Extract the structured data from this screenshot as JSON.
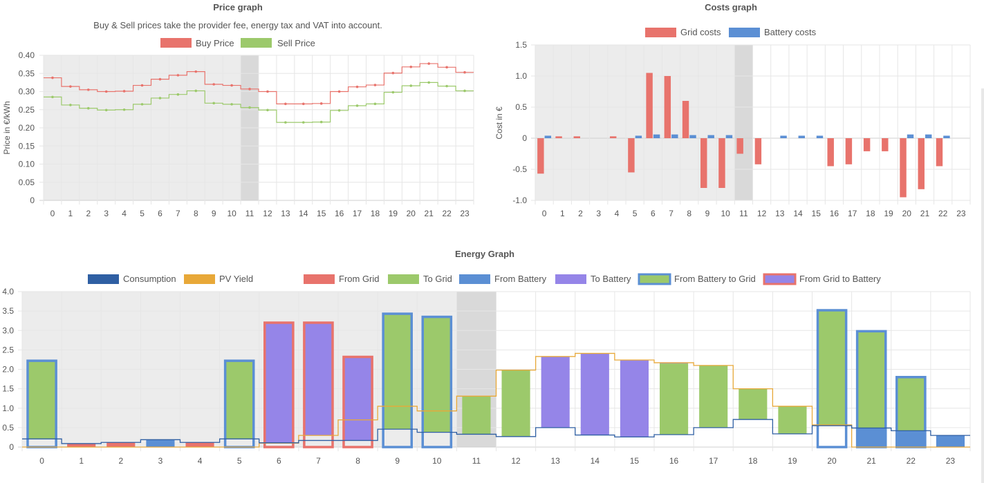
{
  "colors": {
    "buy": "#e8736c",
    "sell": "#9cc96b",
    "grid_cost": "#e8736c",
    "battery_cost": "#5b8fd4",
    "consumption": "#2f5fa3",
    "pv": "#e8a838",
    "from_grid": "#e8736c",
    "to_grid": "#9cc96b",
    "from_battery": "#5b8fd4",
    "to_battery": "#9585e8",
    "past_bg": "#ececec",
    "current_bg": "#d9d9d9"
  },
  "hours": [
    "0",
    "1",
    "2",
    "3",
    "4",
    "5",
    "6",
    "7",
    "8",
    "9",
    "10",
    "11",
    "12",
    "13",
    "14",
    "15",
    "16",
    "17",
    "18",
    "19",
    "20",
    "21",
    "22",
    "23"
  ],
  "current_hour": 11,
  "chart_data": [
    {
      "id": "price",
      "type": "line",
      "title": "Price graph",
      "subtitle": "Buy & Sell prices take the provider fee, energy tax and VAT into account.",
      "ylabel": "Price in €/kWh",
      "ylim": [
        0,
        0.4
      ],
      "yticks": [
        "0.40",
        "0.35",
        "0.30",
        "0.25",
        "0.20",
        "0.15",
        "0.10",
        "0.05",
        "0"
      ],
      "series": [
        {
          "name": "Buy Price",
          "values": [
            0.338,
            0.314,
            0.305,
            0.3,
            0.301,
            0.317,
            0.334,
            0.345,
            0.355,
            0.32,
            0.317,
            0.307,
            0.3,
            0.266,
            0.266,
            0.267,
            0.3,
            0.313,
            0.318,
            0.351,
            0.368,
            0.377,
            0.367,
            0.353
          ]
        },
        {
          "name": "Sell Price",
          "values": [
            0.285,
            0.263,
            0.254,
            0.249,
            0.25,
            0.265,
            0.282,
            0.292,
            0.302,
            0.268,
            0.265,
            0.256,
            0.249,
            0.215,
            0.215,
            0.216,
            0.248,
            0.261,
            0.266,
            0.298,
            0.316,
            0.325,
            0.315,
            0.302
          ]
        }
      ]
    },
    {
      "id": "costs",
      "type": "bar",
      "title": "Costs graph",
      "ylabel": "Cost in €",
      "ylim": [
        -1.0,
        1.5
      ],
      "yticks": [
        "1.5",
        "1.0",
        "0.5",
        "0",
        "-0.5",
        "-1.0"
      ],
      "series": [
        {
          "name": "Grid costs",
          "values": [
            -0.57,
            0.03,
            0.03,
            0,
            0.03,
            -0.55,
            1.05,
            1.0,
            0.6,
            -0.8,
            -0.8,
            -0.25,
            -0.42,
            0,
            0,
            0,
            -0.45,
            -0.42,
            -0.21,
            -0.21,
            -0.95,
            -0.82,
            -0.45,
            0
          ]
        },
        {
          "name": "Battery costs",
          "values": [
            0.04,
            0,
            0,
            0,
            0,
            0.04,
            0.06,
            0.06,
            0.05,
            0.05,
            0.05,
            0,
            0,
            0.04,
            0.04,
            0.04,
            0,
            0,
            0,
            0,
            0.06,
            0.06,
            0.04,
            0
          ]
        }
      ]
    },
    {
      "id": "energy",
      "type": "bar",
      "title": "Energy Graph",
      "ylim": [
        0,
        4.0
      ],
      "yticks": [
        "4.0",
        "3.5",
        "3.0",
        "2.5",
        "2.0",
        "1.5",
        "1.0",
        "0.5",
        "0"
      ],
      "legend": [
        "Consumption",
        "PV Yield",
        "From Grid",
        "To Grid",
        "From Battery",
        "To Battery",
        "From Battery to Grid",
        "From Grid to Battery"
      ],
      "consumption": [
        0.21,
        0.09,
        0.12,
        0.19,
        0.12,
        0.21,
        0.11,
        0.17,
        0.17,
        0.46,
        0.38,
        0.33,
        0.27,
        0.5,
        0.31,
        0.26,
        0.32,
        0.5,
        0.71,
        0.34,
        0.55,
        0.49,
        0.42,
        0.3
      ],
      "pv": [
        0,
        0,
        0,
        0,
        0,
        0,
        0.1,
        0.3,
        0.7,
        1.05,
        0.93,
        1.31,
        1.98,
        2.33,
        2.41,
        2.24,
        2.17,
        2.1,
        1.5,
        1.05,
        0.57,
        0,
        0,
        0
      ],
      "bars": [
        {
          "segments": [
            {
              "kind": "to_grid",
              "from": 0.21,
              "to": 2.22
            }
          ],
          "outline": "battery"
        },
        {
          "segments": [
            {
              "kind": "from_grid",
              "from": 0,
              "to": 0.09
            }
          ]
        },
        {
          "segments": [
            {
              "kind": "from_grid",
              "from": 0,
              "to": 0.12
            }
          ]
        },
        {
          "segments": [
            {
              "kind": "from_battery",
              "from": 0,
              "to": 0.19
            }
          ]
        },
        {
          "segments": [
            {
              "kind": "from_grid",
              "from": 0,
              "to": 0.12
            }
          ]
        },
        {
          "segments": [
            {
              "kind": "to_grid",
              "from": 0.21,
              "to": 2.22
            }
          ],
          "outline": "battery"
        },
        {
          "segments": [
            {
              "kind": "to_battery",
              "from": 0.11,
              "to": 3.2
            }
          ],
          "outline": "grid"
        },
        {
          "segments": [
            {
              "kind": "to_battery",
              "from": 0.3,
              "to": 3.2
            }
          ],
          "outline": "grid"
        },
        {
          "segments": [
            {
              "kind": "to_battery",
              "from": 0.17,
              "to": 2.32
            }
          ],
          "outline": "grid"
        },
        {
          "segments": [
            {
              "kind": "to_grid",
              "from": 0.46,
              "to": 3.43
            }
          ],
          "outline": "battery"
        },
        {
          "segments": [
            {
              "kind": "to_grid",
              "from": 0.38,
              "to": 3.35
            }
          ],
          "outline": "battery"
        },
        {
          "segments": [
            {
              "kind": "to_grid",
              "from": 0.33,
              "to": 1.31
            }
          ]
        },
        {
          "segments": [
            {
              "kind": "to_grid",
              "from": 0.27,
              "to": 1.98
            }
          ]
        },
        {
          "segments": [
            {
              "kind": "to_battery",
              "from": 0.5,
              "to": 2.33
            }
          ]
        },
        {
          "segments": [
            {
              "kind": "to_battery",
              "from": 0.31,
              "to": 2.41
            }
          ]
        },
        {
          "segments": [
            {
              "kind": "to_battery",
              "from": 0.26,
              "to": 2.24
            }
          ]
        },
        {
          "segments": [
            {
              "kind": "to_grid",
              "from": 0.32,
              "to": 2.15
            },
            {
              "kind": "to_battery",
              "from": 2.15,
              "to": 2.17
            }
          ]
        },
        {
          "segments": [
            {
              "kind": "to_grid",
              "from": 0.5,
              "to": 2.1
            }
          ]
        },
        {
          "segments": [
            {
              "kind": "to_grid",
              "from": 0.71,
              "to": 1.5
            }
          ]
        },
        {
          "segments": [
            {
              "kind": "to_grid",
              "from": 0.34,
              "to": 1.05
            }
          ]
        },
        {
          "segments": [
            {
              "kind": "to_grid",
              "from": 0.55,
              "to": 3.52
            }
          ],
          "outline": "battery"
        },
        {
          "segments": [
            {
              "kind": "from_battery",
              "from": 0,
              "to": 0.49
            },
            {
              "kind": "to_grid",
              "from": 0.49,
              "to": 2.98
            }
          ],
          "outline": "battery"
        },
        {
          "segments": [
            {
              "kind": "from_battery",
              "from": 0,
              "to": 0.42
            },
            {
              "kind": "to_grid",
              "from": 0.42,
              "to": 1.8
            }
          ],
          "outline": "battery"
        },
        {
          "segments": [
            {
              "kind": "from_battery",
              "from": 0,
              "to": 0.3
            }
          ]
        }
      ]
    }
  ]
}
